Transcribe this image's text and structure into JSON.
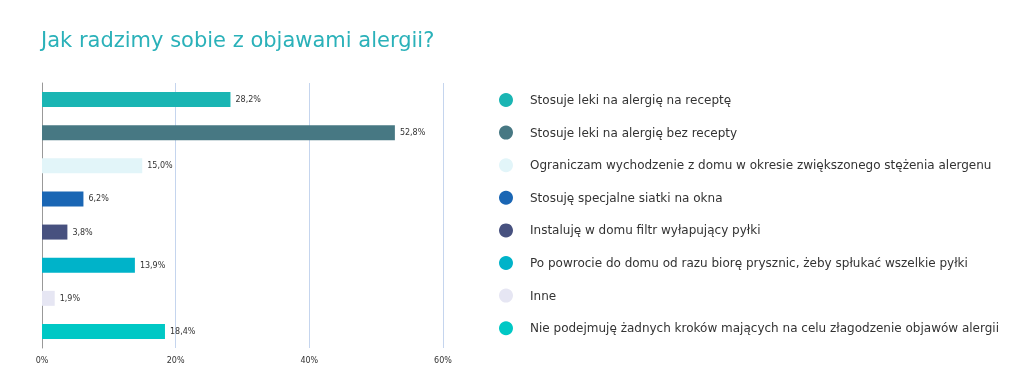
{
  "chart_data": {
    "type": "bar",
    "orientation": "horizontal",
    "stacked": true,
    "title": "Jak radzimy sobie z objawami alergii?",
    "categories": [
      null,
      null,
      null,
      null,
      null,
      null,
      null,
      null
    ],
    "series": [
      {
        "name": "Stosuje leki na alergię na receptę",
        "color": "#1ab5b3",
        "values": [
          28.2,
          null,
          null,
          null,
          null,
          null,
          null,
          null
        ],
        "value_labels": [
          "28,2%",
          null,
          null,
          null,
          null,
          null,
          null,
          null
        ]
      },
      {
        "name": "Stosuje leki na alergię bez recepty",
        "color": "#477883",
        "values": [
          null,
          52.8,
          null,
          null,
          null,
          null,
          null,
          null
        ],
        "value_labels": [
          null,
          "52,8%",
          null,
          null,
          null,
          null,
          null,
          null
        ]
      },
      {
        "name": "Ograniczam wychodzenie z domu w okresie zwiększonego stężenia alergenu",
        "color": "#e2f5f9",
        "values": [
          null,
          null,
          15.0,
          null,
          null,
          null,
          null,
          null
        ],
        "value_labels": [
          null,
          null,
          "15,0%",
          null,
          null,
          null,
          null,
          null
        ]
      },
      {
        "name": "Stosuję specjalne siatki na okna",
        "color": "#1a66b4",
        "values": [
          null,
          null,
          null,
          6.2,
          null,
          null,
          null,
          null
        ],
        "value_labels": [
          null,
          null,
          null,
          "6,2%",
          null,
          null,
          null,
          null
        ]
      },
      {
        "name": "Instaluję w domu filtr wyłapujący pyłki",
        "color": "#47517f",
        "values": [
          null,
          null,
          null,
          null,
          3.8,
          null,
          null,
          null
        ],
        "value_labels": [
          null,
          null,
          null,
          null,
          "3,8%",
          null,
          null,
          null
        ]
      },
      {
        "name": "Po powrocie do domu od razu biorę prysznic, żeby spłukać wszelkie pyłki",
        "color": "#00b3c9",
        "values": [
          null,
          null,
          null,
          null,
          null,
          13.9,
          null,
          null
        ],
        "value_labels": [
          null,
          null,
          null,
          null,
          null,
          "13,9%",
          null,
          null
        ]
      },
      {
        "name": "Inne",
        "color": "#e6e6f3",
        "values": [
          null,
          null,
          null,
          null,
          null,
          null,
          1.9,
          null
        ],
        "value_labels": [
          null,
          null,
          null,
          null,
          null,
          null,
          "1,9%",
          null
        ]
      },
      {
        "name": "Nie podejmuję żadnych kroków mających na celu złagodzenie objawów alergii",
        "color": "#00c8c5",
        "values": [
          null,
          null,
          null,
          null,
          null,
          null,
          null,
          18.4
        ],
        "value_labels": [
          null,
          null,
          null,
          null,
          null,
          null,
          null,
          "18,4%"
        ]
      }
    ],
    "xlim": [
      0,
      60
    ],
    "xticks": [
      {
        "value": 0,
        "label": "0%"
      },
      {
        "value": 20,
        "label": "20%"
      },
      {
        "value": 40,
        "label": "40%"
      },
      {
        "value": 60,
        "label": "60%"
      }
    ],
    "grid": "x",
    "legend": "right"
  }
}
